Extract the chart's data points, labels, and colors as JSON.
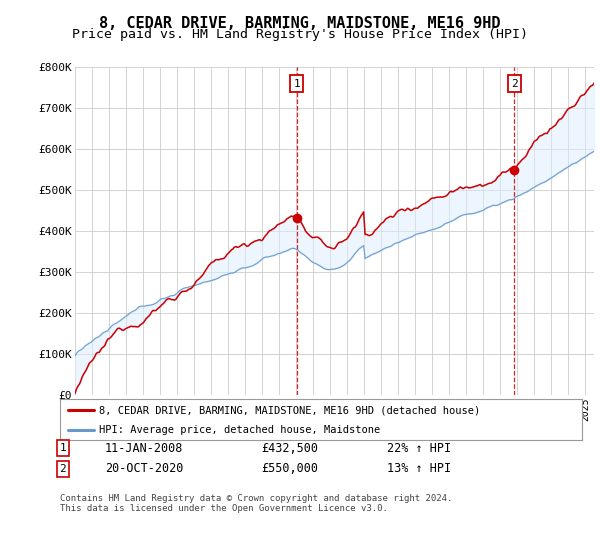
{
  "title": "8, CEDAR DRIVE, BARMING, MAIDSTONE, ME16 9HD",
  "subtitle": "Price paid vs. HM Land Registry's House Price Index (HPI)",
  "ylabel_ticks": [
    "£0",
    "£100K",
    "£200K",
    "£300K",
    "£400K",
    "£500K",
    "£600K",
    "£700K",
    "£800K"
  ],
  "ytick_values": [
    0,
    100000,
    200000,
    300000,
    400000,
    500000,
    600000,
    700000,
    800000
  ],
  "ylim": [
    0,
    800000
  ],
  "xlim_start": 1995.0,
  "xlim_end": 2025.5,
  "sale1_x": 2008.04,
  "sale1_y": 432500,
  "sale2_x": 2020.8,
  "sale2_y": 550000,
  "legend_entry1": "8, CEDAR DRIVE, BARMING, MAIDSTONE, ME16 9HD (detached house)",
  "legend_entry2": "HPI: Average price, detached house, Maidstone",
  "annotation1_date": "11-JAN-2008",
  "annotation1_price": "£432,500",
  "annotation1_hpi": "22% ↑ HPI",
  "annotation2_date": "20-OCT-2020",
  "annotation2_price": "£550,000",
  "annotation2_hpi": "13% ↑ HPI",
  "footer": "Contains HM Land Registry data © Crown copyright and database right 2024.\nThis data is licensed under the Open Government Licence v3.0.",
  "line_color_red": "#cc0000",
  "line_color_blue": "#6699cc",
  "fill_color_blue": "#ddeeff",
  "background_color": "#ffffff",
  "grid_color": "#cccccc",
  "title_fontsize": 11,
  "subtitle_fontsize": 9.5
}
